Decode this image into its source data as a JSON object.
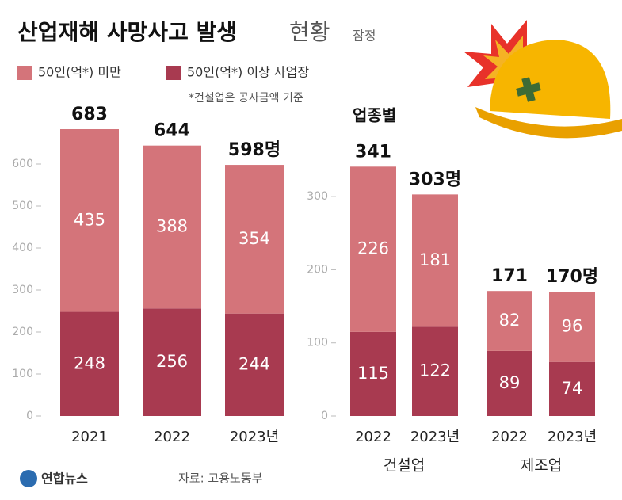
{
  "title": "산업재해 사망사고 발생",
  "title_light": "현황",
  "title_note": "잠정",
  "legend_note": "*건설업은 공사금액 기준",
  "source": "자료: 고용노동부",
  "logo": "연합뉴스",
  "chart_data": [
    {
      "type": "bar",
      "stacked": true,
      "categories": [
        "2021",
        "2022",
        "2023년"
      ],
      "series": [
        {
          "name": "50인(억*) 이상 사업장",
          "color": "#a83a50",
          "values": [
            248,
            256,
            244
          ]
        },
        {
          "name": "50인(억*) 미만",
          "color": "#d4747a",
          "values": [
            435,
            388,
            354
          ]
        }
      ],
      "totals": {
        "values": [
          683,
          644,
          598
        ],
        "value_labels": [
          "683",
          "644",
          "598명"
        ]
      },
      "ylim": [
        0,
        700
      ],
      "yticks": [
        0,
        100,
        200,
        300,
        400,
        500,
        600
      ]
    },
    {
      "type": "bar",
      "stacked": true,
      "title": "업종별",
      "categories": [
        "2022",
        "2023년",
        "2022",
        "2023년"
      ],
      "groups": [
        "건설업",
        "제조업"
      ],
      "series": [
        {
          "color": "#a83a50",
          "values": [
            115,
            122,
            89,
            74
          ]
        },
        {
          "color": "#d4747a",
          "values": [
            226,
            181,
            82,
            96
          ]
        }
      ],
      "totals": {
        "values": [
          341,
          303,
          171,
          170
        ],
        "value_labels": [
          "341",
          "303명",
          "171",
          "170명"
        ]
      },
      "ylim": [
        0,
        350
      ],
      "yticks": [
        0,
        100,
        200,
        300
      ]
    }
  ]
}
